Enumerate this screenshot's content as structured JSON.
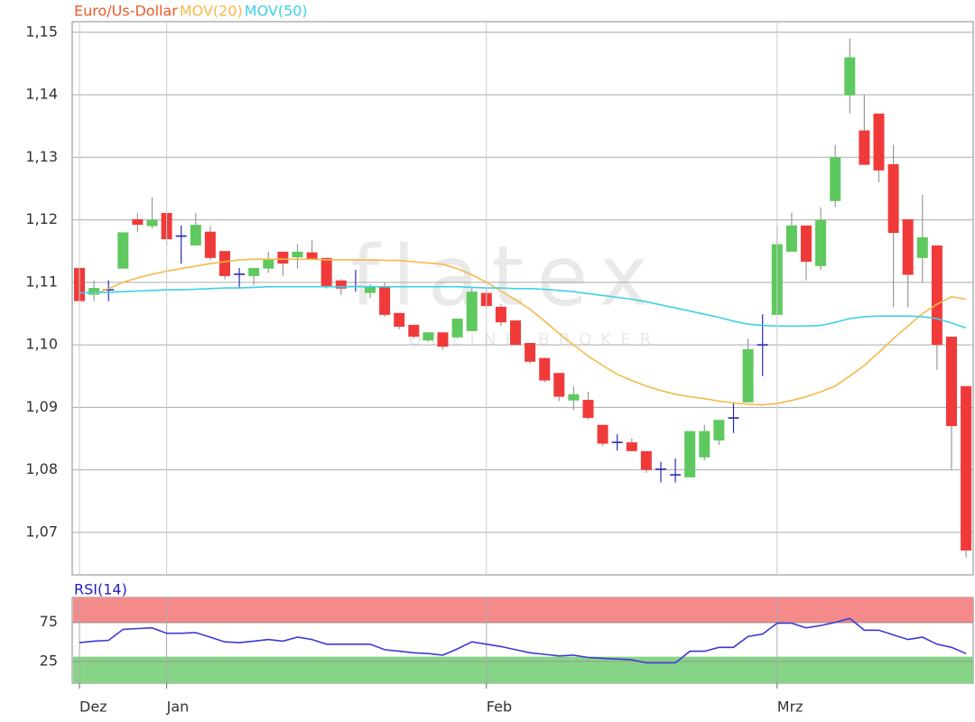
{
  "chart_data": [
    {
      "type": "candlestick",
      "ylim": [
        1.0632,
        1.1517
      ],
      "yticks": [
        {
          "value": 1.07,
          "label": "1,07"
        },
        {
          "value": 1.08,
          "label": "1,08"
        },
        {
          "value": 1.09,
          "label": "1,09"
        },
        {
          "value": 1.1,
          "label": "1,10"
        },
        {
          "value": 1.11,
          "label": "1,11"
        },
        {
          "value": 1.12,
          "label": "1,12"
        },
        {
          "value": 1.13,
          "label": "1,13"
        },
        {
          "value": 1.14,
          "label": "1,14"
        },
        {
          "value": 1.15,
          "label": "1,15"
        }
      ],
      "grid": true,
      "up_color": "#5ec95e",
      "down_color": "#f03a3a",
      "doji_color": "#2b2bb0",
      "series": [
        {
          "name": "Euro/Us-Dollar",
          "color": "#f05a28",
          "open": [
            1.1123,
            1.108,
            1.1088,
            1.1122,
            1.1201,
            1.119,
            1.1211,
            1.1174,
            1.1159,
            1.1181,
            1.115,
            1.1113,
            1.111,
            1.1122,
            1.1149,
            1.114,
            1.1148,
            1.1139,
            1.1103,
            1.1093,
            1.1083,
            1.1093,
            1.1051,
            1.1032,
            1.1007,
            1.102,
            1.1012,
            1.1022,
            1.1083,
            1.1061,
            1.1039,
            1.1003,
            1.0979,
            1.0955,
            1.0911,
            1.0912,
            1.0872,
            1.0844,
            1.0844,
            1.083,
            1.0801,
            1.0792,
            1.0788,
            1.082,
            1.0847,
            1.0883,
            1.0908,
            1.1,
            1.1048,
            1.1149,
            1.1191,
            1.1126,
            1.123,
            1.1399,
            1.1343,
            1.137,
            1.1289,
            1.1201,
            1.1139,
            1.1159,
            1.1013,
            1.0934
          ],
          "high": [
            1.1123,
            1.1103,
            1.1103,
            1.118,
            1.1211,
            1.1236,
            1.1211,
            1.1191,
            1.1211,
            1.119,
            1.115,
            1.1123,
            1.1123,
            1.1149,
            1.1149,
            1.1161,
            1.1167,
            1.1139,
            1.1105,
            1.112,
            1.1097,
            1.11,
            1.1051,
            1.1032,
            1.102,
            1.102,
            1.1042,
            1.109,
            1.109,
            1.1065,
            1.1039,
            1.1003,
            1.0979,
            1.0955,
            1.0934,
            1.0925,
            1.0872,
            1.0857,
            1.085,
            1.083,
            1.0813,
            1.0818,
            1.0862,
            1.0872,
            1.088,
            1.0908,
            1.101,
            1.1049,
            1.119,
            1.1211,
            1.1191,
            1.122,
            1.132,
            1.149,
            1.14,
            1.137,
            1.132,
            1.1201,
            1.124,
            1.1159,
            1.1013,
            1.0934
          ],
          "low": [
            1.107,
            1.107,
            1.107,
            1.1122,
            1.118,
            1.1186,
            1.1159,
            1.113,
            1.1159,
            1.1135,
            1.1105,
            1.109,
            1.1095,
            1.1115,
            1.111,
            1.1122,
            1.1135,
            1.109,
            1.108,
            1.1085,
            1.1075,
            1.1045,
            1.1025,
            1.101,
            1.1005,
            1.0992,
            1.101,
            1.1022,
            1.106,
            1.103,
            1.0999,
            1.097,
            1.094,
            1.091,
            1.0896,
            1.088,
            1.0838,
            1.0831,
            1.083,
            1.0795,
            1.078,
            1.078,
            1.0788,
            1.0815,
            1.084,
            1.0859,
            1.0908,
            1.095,
            1.1048,
            1.1149,
            1.1103,
            1.112,
            1.122,
            1.137,
            1.1288,
            1.126,
            1.106,
            1.106,
            1.11,
            1.096,
            1.08,
            1.066
          ],
          "close": [
            1.107,
            1.1091,
            1.1088,
            1.118,
            1.1192,
            1.12,
            1.1169,
            1.1174,
            1.1192,
            1.1139,
            1.111,
            1.1113,
            1.1123,
            1.1136,
            1.113,
            1.1149,
            1.1137,
            1.1093,
            1.109,
            1.1093,
            1.1093,
            1.1048,
            1.1029,
            1.1013,
            1.102,
            1.0997,
            1.1042,
            1.1085,
            1.1062,
            1.1036,
            1.1,
            1.0973,
            1.0943,
            1.0917,
            1.0921,
            1.0883,
            1.0842,
            1.0844,
            1.083,
            1.08,
            1.0801,
            1.0792,
            1.0862,
            1.0862,
            1.088,
            1.0883,
            1.0993,
            1.1,
            1.1161,
            1.1191,
            1.1133,
            1.12,
            1.13,
            1.146,
            1.1288,
            1.1279,
            1.1179,
            1.1112,
            1.1172,
            1.1,
            1.087,
            1.0671
          ]
        },
        {
          "name": "MOV(20)",
          "color": "#f5b94a",
          "values": [
            null,
            1.1081,
            1.109,
            1.11,
            1.1107,
            1.1113,
            1.1118,
            1.1122,
            1.1126,
            1.113,
            1.1133,
            1.1136,
            1.1137,
            1.1137,
            1.1137,
            1.1137,
            1.1137,
            1.1136,
            1.1136,
            1.1136,
            1.1136,
            1.1135,
            1.1135,
            1.1133,
            1.1131,
            1.1129,
            1.1122,
            1.1112,
            1.11,
            1.1086,
            1.1072,
            1.1057,
            1.1038,
            1.1018,
            1.1,
            1.0982,
            1.0967,
            1.0953,
            1.0943,
            1.0934,
            1.0927,
            1.0921,
            1.0917,
            1.0914,
            1.091,
            1.0907,
            1.0905,
            1.0904,
            1.0906,
            1.0911,
            1.0917,
            1.0925,
            1.0934,
            1.095,
            1.0967,
            1.0988,
            1.101,
            1.103,
            1.105,
            1.1065,
            1.1077,
            1.1073
          ]
        },
        {
          "name": "MOV(50)",
          "color": "#3fd0e8",
          "values": [
            1.1083,
            1.1084,
            1.1084,
            1.1085,
            1.1086,
            1.1087,
            1.1088,
            1.1088,
            1.1089,
            1.109,
            1.1091,
            1.1091,
            1.1092,
            1.1093,
            1.1093,
            1.1093,
            1.1093,
            1.1093,
            1.1093,
            1.1093,
            1.1093,
            1.1093,
            1.1093,
            1.1093,
            1.1093,
            1.1093,
            1.1093,
            1.1092,
            1.1091,
            1.1091,
            1.109,
            1.109,
            1.1089,
            1.1087,
            1.1085,
            1.1082,
            1.1079,
            1.1076,
            1.1073,
            1.1069,
            1.1064,
            1.1059,
            1.1054,
            1.1049,
            1.1044,
            1.1038,
            1.1033,
            1.1031,
            1.103,
            1.103,
            1.103,
            1.1031,
            1.1036,
            1.1042,
            1.1045,
            1.1046,
            1.1046,
            1.1046,
            1.1045,
            1.1042,
            1.1035,
            1.1027
          ]
        }
      ]
    },
    {
      "type": "line",
      "title": "RSI(14)",
      "title_color": "#2020c0",
      "categories": [
        "Dez",
        null,
        null,
        null,
        null,
        null,
        "Jan",
        null,
        null,
        null,
        null,
        null,
        null,
        null,
        null,
        null,
        null,
        null,
        null,
        null,
        null,
        null,
        null,
        null,
        null,
        null,
        null,
        null,
        "Feb",
        null,
        null,
        null,
        null,
        null,
        null,
        null,
        null,
        null,
        null,
        null,
        null,
        null,
        null,
        null,
        null,
        null,
        null,
        null,
        "Mrz",
        null,
        null,
        null,
        null,
        null,
        null,
        null,
        null,
        null,
        null,
        null,
        null,
        null
      ],
      "ylim": [
        -3,
        107
      ],
      "yticks": [
        25,
        75
      ],
      "grid": true,
      "bands": [
        {
          "from": 74,
          "to": 107,
          "color": "#f58a8a"
        },
        {
          "from": -3,
          "to": 31,
          "color": "#86d486"
        }
      ],
      "series": [
        {
          "color": "#3a3ad8",
          "values": [
            49,
            51,
            52,
            66,
            67,
            68,
            61,
            61,
            62,
            56,
            50,
            49,
            51,
            53,
            51,
            56,
            53,
            47,
            47,
            47,
            47,
            40,
            38,
            36,
            35,
            33,
            41,
            50,
            47,
            44,
            40,
            36,
            34,
            32,
            33,
            30,
            29,
            28,
            27,
            23,
            23,
            23,
            38,
            38,
            43,
            43,
            57,
            60,
            74,
            74,
            68,
            71,
            75,
            80,
            65,
            65,
            59,
            53,
            56,
            47,
            43,
            35
          ]
        }
      ]
    }
  ],
  "watermark": {
    "brand": "flatex",
    "tagline": "ONLINE BROKER"
  }
}
